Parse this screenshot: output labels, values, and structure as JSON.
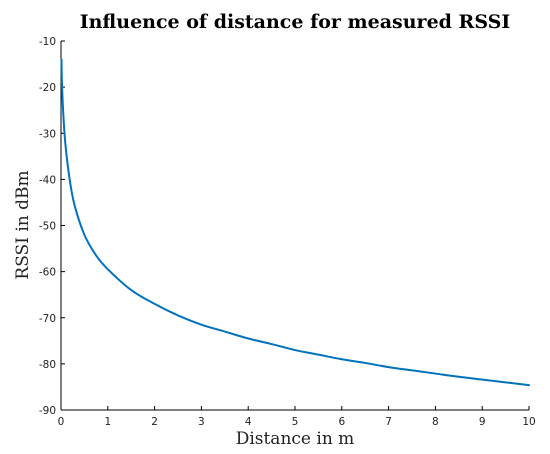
{
  "chart_data": {
    "type": "line",
    "title": "Influence of distance for measured RSSI",
    "xlabel": "Distance in m",
    "ylabel": "RSSI in dBm",
    "xlim": [
      0,
      10
    ],
    "ylim": [
      -90,
      -10
    ],
    "x_ticks": [
      "0",
      "1",
      "2",
      "3",
      "4",
      "5",
      "6",
      "7",
      "8",
      "9",
      "10"
    ],
    "y_ticks": [
      "-10",
      "-20",
      "-30",
      "-40",
      "-50",
      "-60",
      "-70",
      "-80",
      "-90"
    ],
    "grid": false,
    "series": [
      {
        "color": "#0072bd",
        "x": [
          0.01,
          0.02,
          0.05,
          0.1,
          0.2,
          0.3,
          0.5,
          0.75,
          1,
          1.5,
          2,
          2.5,
          3,
          3.5,
          4,
          4.5,
          5,
          5.5,
          6,
          6.5,
          7,
          7.5,
          8,
          8.5,
          9,
          9.5,
          10
        ],
        "y": [
          -14,
          -19,
          -26,
          -33,
          -41,
          -46,
          -52,
          -56.5,
          -59.5,
          -64,
          -67,
          -69.5,
          -71.5,
          -73,
          -74.5,
          -75.7,
          -77,
          -78,
          -79,
          -79.8,
          -80.7,
          -81.4,
          -82.1,
          -82.8,
          -83.4,
          -84,
          -84.6
        ]
      }
    ]
  }
}
